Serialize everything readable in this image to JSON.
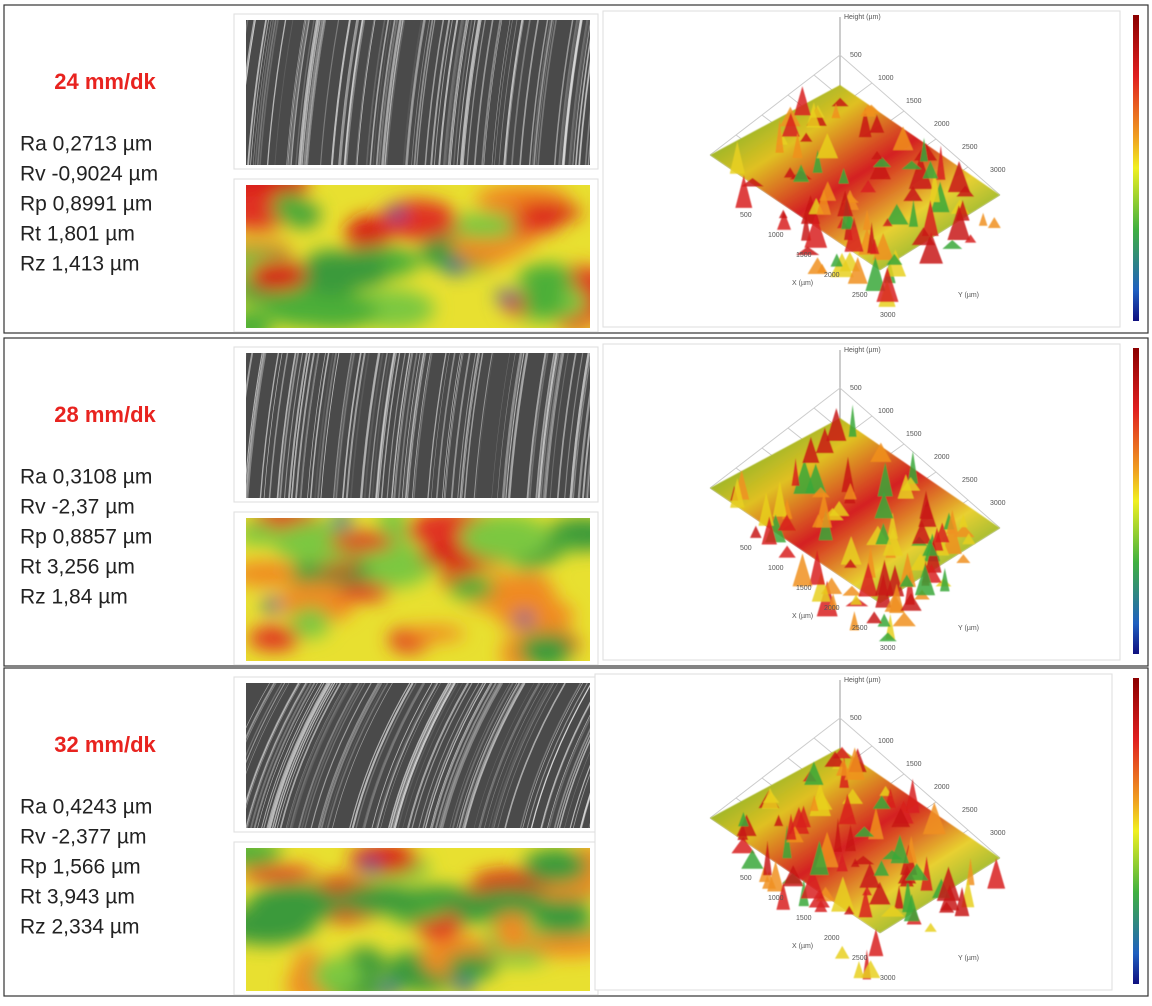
{
  "rows": [
    {
      "title": "24 mm/dk",
      "params": [
        "Ra 0,2713 µm",
        "Rv -0,9024 µm",
        "Rp 0,8991 µm",
        "Rt 1,801 µm",
        "Rz 1,413 µm"
      ]
    },
    {
      "title": "28 mm/dk",
      "params": [
        "Ra 0,3108 µm",
        "Rv -2,37 µm",
        "Rp 0,8857 µm",
        "Rt 3,256 µm",
        "Rz 1,84 µm"
      ]
    },
    {
      "title": "32 mm/dk",
      "params": [
        "Ra 0,4243 µm",
        "Rv -2,377 µm",
        "Rp 1,566 µm",
        "Rt 3,943 µm",
        "Rz 2,334 µm"
      ]
    }
  ],
  "plot": {
    "z_label": "Height (µm)",
    "y_label": "Y (µm)",
    "x_label": "X (µm)",
    "x_ticks": [
      "500",
      "1000",
      "1500",
      "2000",
      "2500",
      "3000"
    ],
    "y_ticks": [
      "500",
      "1000",
      "1500",
      "2000",
      "2500",
      "3000"
    ]
  }
}
